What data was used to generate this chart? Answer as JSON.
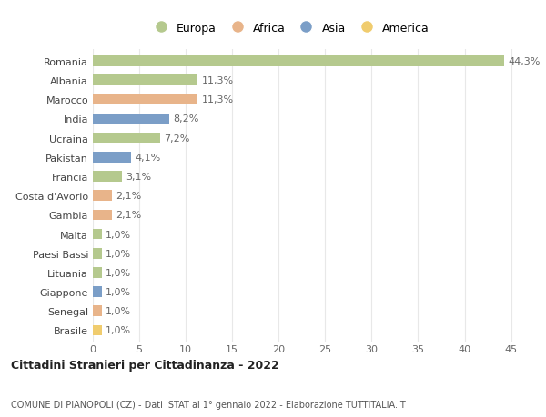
{
  "countries": [
    "Romania",
    "Albania",
    "Marocco",
    "India",
    "Ucraina",
    "Pakistan",
    "Francia",
    "Costa d'Avorio",
    "Gambia",
    "Malta",
    "Paesi Bassi",
    "Lituania",
    "Giappone",
    "Senegal",
    "Brasile"
  ],
  "values": [
    44.3,
    11.3,
    11.3,
    8.2,
    7.2,
    4.1,
    3.1,
    2.1,
    2.1,
    1.0,
    1.0,
    1.0,
    1.0,
    1.0,
    1.0
  ],
  "labels": [
    "44,3%",
    "11,3%",
    "11,3%",
    "8,2%",
    "7,2%",
    "4,1%",
    "3,1%",
    "2,1%",
    "2,1%",
    "1,0%",
    "1,0%",
    "1,0%",
    "1,0%",
    "1,0%",
    "1,0%"
  ],
  "continents": [
    "Europa",
    "Europa",
    "Africa",
    "Asia",
    "Europa",
    "Asia",
    "Europa",
    "Africa",
    "Africa",
    "Europa",
    "Europa",
    "Europa",
    "Asia",
    "Africa",
    "America"
  ],
  "continent_colors": {
    "Europa": "#b5c98e",
    "Africa": "#e8b48a",
    "Asia": "#7b9ec7",
    "America": "#f0cc6e"
  },
  "legend_labels": [
    "Europa",
    "Africa",
    "Asia",
    "America"
  ],
  "legend_colors": [
    "#b5c98e",
    "#e8b48a",
    "#7b9ec7",
    "#f0cc6e"
  ],
  "title": "Cittadini Stranieri per Cittadinanza - 2022",
  "subtitle": "COMUNE DI PIANOPOLI (CZ) - Dati ISTAT al 1° gennaio 2022 - Elaborazione TUTTITALIA.IT",
  "xlim": [
    0,
    47
  ],
  "xticks": [
    0,
    5,
    10,
    15,
    20,
    25,
    30,
    35,
    40,
    45
  ],
  "bg_color": "#ffffff",
  "grid_color": "#e8e8e8",
  "bar_height": 0.55,
  "label_fontsize": 8,
  "tick_fontsize": 8,
  "ytick_fontsize": 8
}
